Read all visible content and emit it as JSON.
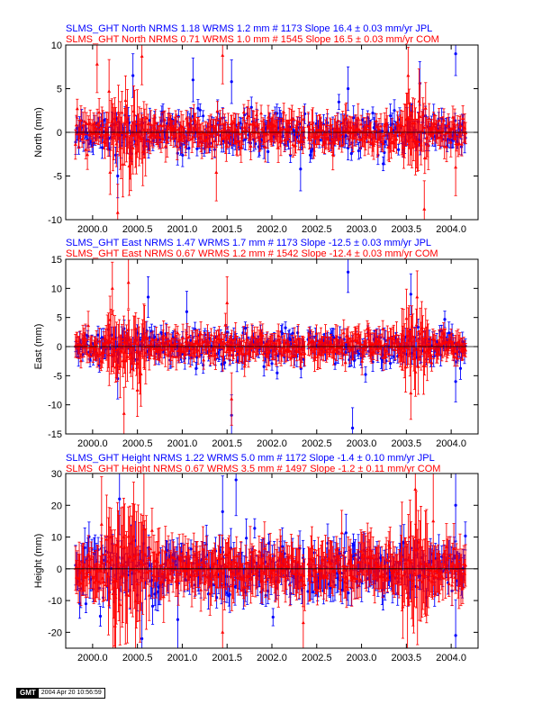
{
  "colors": {
    "jpl": "#0000ff",
    "com": "#ff0000",
    "axis": "#000000"
  },
  "stamp": {
    "logo": "GMT",
    "date": "2004 Apr 20 10:56:59"
  },
  "chart_data": [
    {
      "type": "scatter",
      "component": "north",
      "ylabel": "North (mm)",
      "ylim": [
        -10,
        10
      ],
      "yticks": [
        -10,
        -5,
        0,
        5,
        10
      ],
      "xlim": [
        1999.7,
        2004.3
      ],
      "xticks": [
        2000.0,
        2000.5,
        2001.0,
        2001.5,
        2002.0,
        2002.5,
        2003.0,
        2003.5,
        2004.0
      ],
      "xtick_labels": [
        "2000.0",
        "2000.5",
        "2001.0",
        "2001.5",
        "2002.0",
        "2002.5",
        "2003.0",
        "2003.5",
        "2004.0"
      ],
      "header_lines": [
        "SLMS_GHT North NRMS 1.18 WRMS  1.2 mm # 1173 Slope   16.4 ±  0.03 mm/yr JPL",
        "SLMS_GHT North NRMS 0.71 WRMS  1.0 mm # 1545 Slope   16.5 ±  0.03 mm/yr COM"
      ],
      "series": [
        {
          "name": "JPL",
          "marker": "circle",
          "scatter": 1.2,
          "error": 1.0,
          "spikes": [
            [
              2000.45,
              6.5
            ],
            [
              2001.12,
              6.0
            ],
            [
              2001.55,
              5.8
            ],
            [
              2002.85,
              5.0
            ],
            [
              2003.65,
              5.6
            ],
            [
              2004.05,
              9.0
            ],
            [
              2000.28,
              -5.0
            ],
            [
              2002.32,
              -4.2
            ]
          ]
        },
        {
          "name": "COM",
          "marker": "triangle",
          "scatter": 1.0,
          "error": 1.3,
          "spikes": [
            [
              2000.05,
              7.8
            ],
            [
              2000.55,
              8.7
            ],
            [
              2001.45,
              8.8
            ],
            [
              2003.52,
              6.5
            ],
            [
              2003.7,
              -8.8
            ],
            [
              2000.28,
              -9.2
            ],
            [
              2001.38,
              -4.6
            ],
            [
              2004.05,
              -4.0
            ]
          ]
        }
      ]
    },
    {
      "type": "scatter",
      "component": "east",
      "ylabel": "East (mm)",
      "ylim": [
        -15,
        15
      ],
      "yticks": [
        -15,
        -10,
        -5,
        0,
        5,
        10,
        15
      ],
      "xlim": [
        1999.7,
        2004.3
      ],
      "xticks": [
        2000.0,
        2000.5,
        2001.0,
        2001.5,
        2002.0,
        2002.5,
        2003.0,
        2003.5,
        2004.0
      ],
      "xtick_labels": [
        "2000.0",
        "2000.5",
        "2001.0",
        "2001.5",
        "2002.0",
        "2002.5",
        "2003.0",
        "2003.5",
        "2004.0"
      ],
      "header_lines": [
        "SLMS_GHT East NRMS 1.47 WRMS  1.7 mm # 1173 Slope  -12.5 ±  0.03 mm/yr JPL",
        "SLMS_GHT East NRMS 0.67 WRMS  1.2 mm # 1542 Slope  -12.4 ±  0.03 mm/yr COM"
      ],
      "series": [
        {
          "name": "JPL",
          "marker": "circle",
          "scatter": 1.6,
          "error": 1.4,
          "spikes": [
            [
              2000.62,
              8.5
            ],
            [
              2001.05,
              6.0
            ],
            [
              2002.85,
              12.8
            ],
            [
              2003.55,
              9.0
            ],
            [
              2002.9,
              -14.0
            ],
            [
              2001.55,
              -11.8
            ],
            [
              2000.28,
              -5.5
            ],
            [
              2004.05,
              -6.0
            ]
          ]
        },
        {
          "name": "COM",
          "marker": "triangle",
          "scatter": 1.2,
          "error": 1.8,
          "spikes": [
            [
              2000.22,
              10.0
            ],
            [
              2000.4,
              11.0
            ],
            [
              2001.5,
              7.5
            ],
            [
              2003.62,
              8.5
            ],
            [
              2000.35,
              -11.5
            ],
            [
              2001.55,
              -9.0
            ],
            [
              2003.55,
              -8.0
            ],
            [
              2000.5,
              -7.5
            ]
          ]
        }
      ]
    },
    {
      "type": "scatter",
      "component": "height",
      "ylabel": "Height (mm)",
      "ylim": [
        -25,
        30
      ],
      "yticks": [
        -20,
        -10,
        0,
        10,
        20,
        30
      ],
      "xlim": [
        1999.7,
        2004.3
      ],
      "xticks": [
        2000.0,
        2000.5,
        2001.0,
        2001.5,
        2002.0,
        2002.5,
        2003.0,
        2003.5,
        2004.0
      ],
      "xtick_labels": [
        "2000.0",
        "2000.5",
        "2001.0",
        "2001.5",
        "2002.0",
        "2002.5",
        "2003.0",
        "2003.5",
        "2004.0"
      ],
      "header_lines": [
        "SLMS_GHT Height NRMS 1.22 WRMS  5.0 mm # 1172 Slope   -1.4 ±  0.10 mm/yr JPL",
        "SLMS_GHT Height NRMS 0.67 WRMS  3.5 mm # 1497 Slope   -1.2 ±  0.11 mm/yr COM"
      ],
      "series": [
        {
          "name": "JPL",
          "marker": "circle",
          "scatter": 5.0,
          "error": 4.5,
          "spikes": [
            [
              2001.6,
              28.0
            ],
            [
              2001.45,
              18.0
            ],
            [
              2000.3,
              22.0
            ],
            [
              2004.05,
              20.0
            ],
            [
              2000.55,
              -22.0
            ],
            [
              2004.05,
              -21.0
            ],
            [
              2000.95,
              -16.0
            ]
          ]
        },
        {
          "name": "COM",
          "marker": "triangle",
          "scatter": 3.5,
          "error": 6.0,
          "spikes": [
            [
              2003.6,
              25.0
            ],
            [
              2000.1,
              14.0
            ],
            [
              2003.8,
              15.0
            ],
            [
              2000.25,
              -18.0
            ],
            [
              2001.45,
              -20.0
            ],
            [
              2002.35,
              -17.0
            ]
          ]
        }
      ]
    }
  ]
}
